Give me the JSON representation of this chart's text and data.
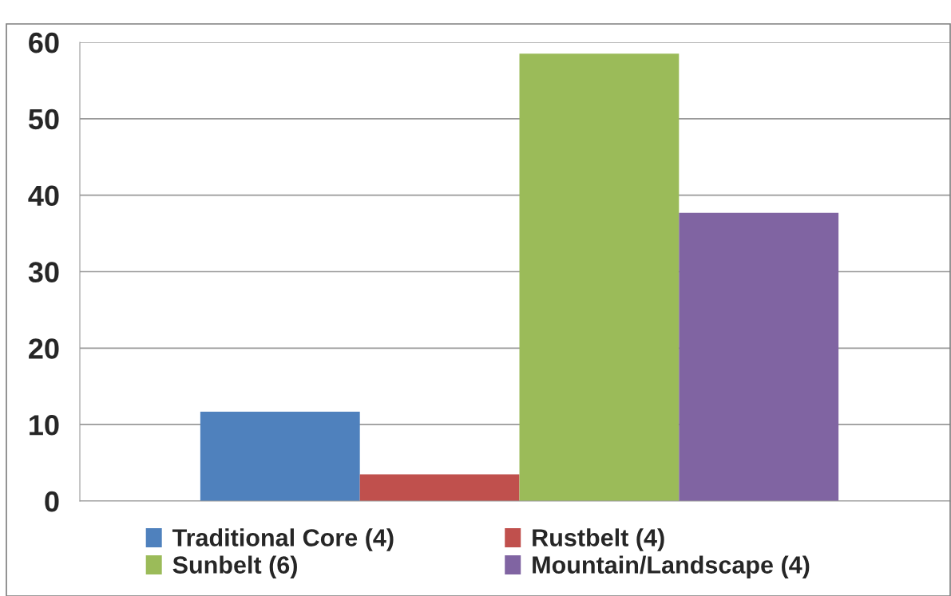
{
  "chart_data": {
    "type": "bar",
    "categories": [
      null
    ],
    "series": [
      {
        "name": "Traditional Core (4)",
        "color": "#4f81bd",
        "values": [
          11.7
        ]
      },
      {
        "name": "Rustbelt (4)",
        "color": "#c0504d",
        "values": [
          3.5
        ]
      },
      {
        "name": "Sunbelt (6)",
        "color": "#9bbb59",
        "values": [
          58.5
        ]
      },
      {
        "name": "Mountain/Landscape (4)",
        "color": "#8064a2",
        "values": [
          37.7
        ]
      }
    ],
    "ylim": [
      0,
      60
    ],
    "yticks": [
      0,
      10,
      20,
      30,
      40,
      50,
      60
    ],
    "grid": "y",
    "legend": "bottom"
  }
}
